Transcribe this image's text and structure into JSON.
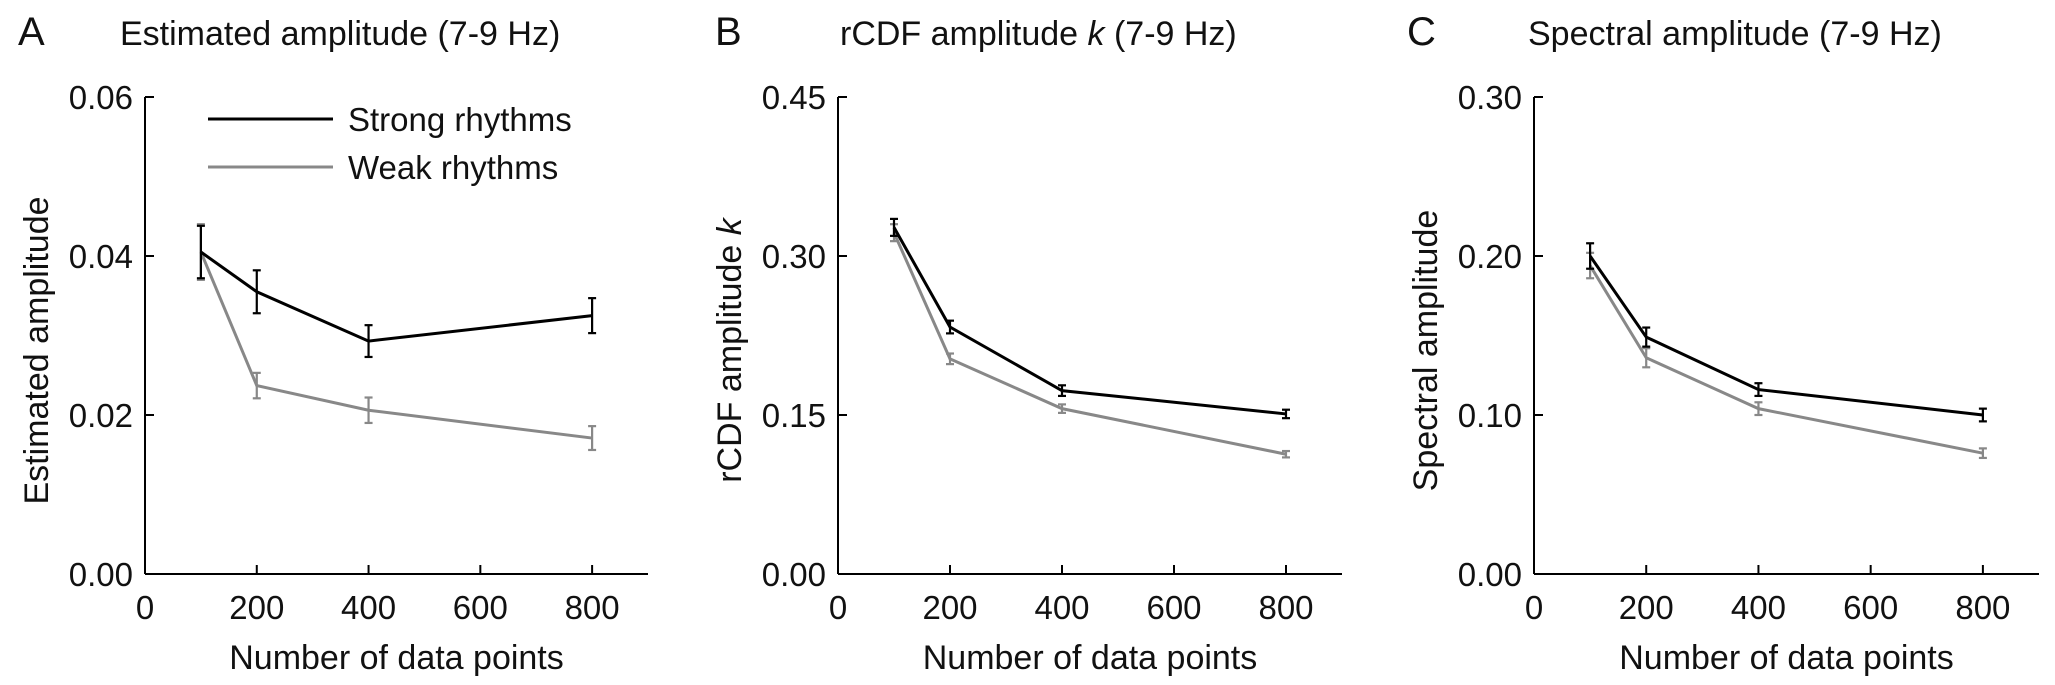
{
  "figure": {
    "legend": {
      "placement": "top-left",
      "items": [
        {
          "label": "Strong rhythms",
          "color": "#000000"
        },
        {
          "label": "Weak rhythms",
          "color": "#888888"
        }
      ]
    }
  },
  "chart_data": [
    {
      "type": "line",
      "panel_letter": "A",
      "title": "Estimated amplitude (7-9 Hz)",
      "xlabel": "Number of data points",
      "ylabel": "Estimated amplitude",
      "ylabel_italic_suffix": "",
      "xlim": [
        0,
        900
      ],
      "ylim": [
        0,
        0.06
      ],
      "xticks": [
        0,
        200,
        400,
        600,
        800
      ],
      "xtick_labels": [
        "0",
        "200",
        "400",
        "600",
        "800"
      ],
      "yticks": [
        0,
        0.02,
        0.04,
        0.06
      ],
      "ytick_labels": [
        "0.00",
        "0.02",
        "0.04",
        "0.06"
      ],
      "grid": false,
      "legend_shown": true,
      "series": [
        {
          "name": "Strong rhythms",
          "color": "#000000",
          "x": [
            100,
            200,
            400,
            800
          ],
          "y": [
            0.0405,
            0.0355,
            0.0293,
            0.0325
          ],
          "err": [
            0.0033,
            0.0027,
            0.002,
            0.0022
          ]
        },
        {
          "name": "Weak rhythms",
          "color": "#888888",
          "x": [
            100,
            200,
            400,
            800
          ],
          "y": [
            0.0405,
            0.0237,
            0.0206,
            0.0171
          ],
          "err": [
            0.0035,
            0.0016,
            0.0016,
            0.0015
          ]
        }
      ]
    },
    {
      "type": "line",
      "panel_letter": "B",
      "title": "rCDF amplitude k (7-9 Hz)",
      "title_plain": "rCDF amplitude ",
      "title_italic": "k",
      "title_rest": " (7-9 Hz)",
      "xlabel": "Number of data points",
      "ylabel": "rCDF amplitude ",
      "ylabel_italic_suffix": "k",
      "xlim": [
        0,
        900
      ],
      "ylim": [
        0,
        0.45
      ],
      "xticks": [
        0,
        200,
        400,
        600,
        800
      ],
      "xtick_labels": [
        "0",
        "200",
        "400",
        "600",
        "800"
      ],
      "yticks": [
        0,
        0.15,
        0.3,
        0.45
      ],
      "ytick_labels": [
        "0.00",
        "0.15",
        "0.30",
        "0.45"
      ],
      "grid": false,
      "legend_shown": false,
      "series": [
        {
          "name": "Strong rhythms",
          "color": "#000000",
          "x": [
            100,
            200,
            400,
            800
          ],
          "y": [
            0.327,
            0.233,
            0.173,
            0.151
          ],
          "err": [
            0.008,
            0.006,
            0.005,
            0.004
          ]
        },
        {
          "name": "Weak rhythms",
          "color": "#888888",
          "x": [
            100,
            200,
            400,
            800
          ],
          "y": [
            0.322,
            0.203,
            0.156,
            0.113
          ],
          "err": [
            0.008,
            0.005,
            0.004,
            0.003
          ]
        }
      ]
    },
    {
      "type": "line",
      "panel_letter": "C",
      "title": "Spectral amplitude (7-9 Hz)",
      "xlabel": "Number of data points",
      "ylabel": "Spectral amplitude",
      "ylabel_italic_suffix": "",
      "xlim": [
        0,
        900
      ],
      "ylim": [
        0,
        0.3
      ],
      "xticks": [
        0,
        200,
        400,
        600,
        800
      ],
      "xtick_labels": [
        "0",
        "200",
        "400",
        "600",
        "800"
      ],
      "yticks": [
        0,
        0.1,
        0.2,
        0.3
      ],
      "ytick_labels": [
        "0.00",
        "0.10",
        "0.20",
        "0.30"
      ],
      "grid": false,
      "legend_shown": false,
      "series": [
        {
          "name": "Strong rhythms",
          "color": "#000000",
          "x": [
            100,
            200,
            400,
            800
          ],
          "y": [
            0.2,
            0.149,
            0.116,
            0.1
          ],
          "err": [
            0.008,
            0.006,
            0.004,
            0.004
          ]
        },
        {
          "name": "Weak rhythms",
          "color": "#888888",
          "x": [
            100,
            200,
            400,
            800
          ],
          "y": [
            0.194,
            0.136,
            0.104,
            0.076
          ],
          "err": [
            0.008,
            0.006,
            0.004,
            0.003
          ]
        }
      ]
    }
  ]
}
